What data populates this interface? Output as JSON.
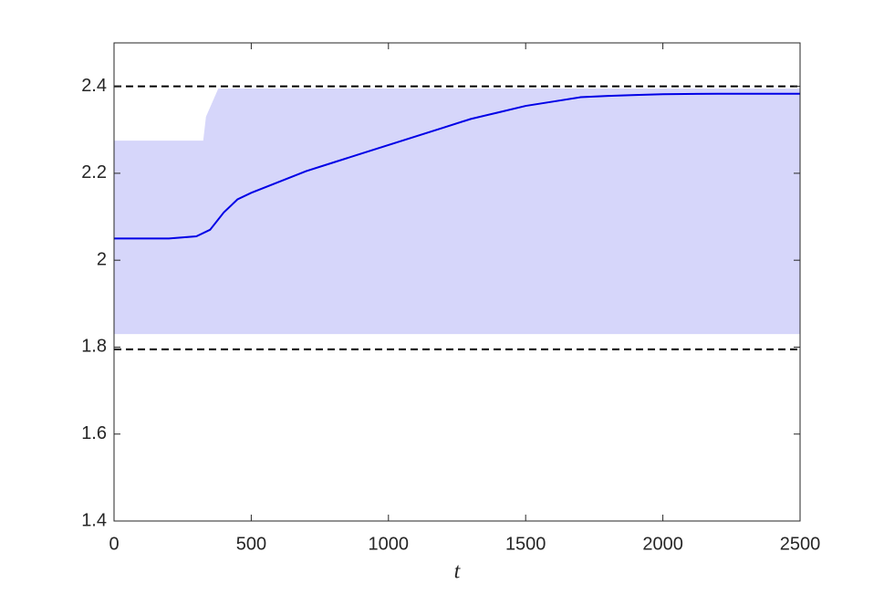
{
  "chart_data": {
    "type": "line",
    "xlabel": "t",
    "xlim": [
      0,
      2500
    ],
    "ylim": [
      1.4,
      2.5
    ],
    "xticks": [
      0,
      500,
      1000,
      1500,
      2000,
      2500
    ],
    "yticks": [
      1.4,
      1.6,
      1.8,
      2,
      2.2,
      2.4
    ],
    "hlines": [
      2.4,
      1.795
    ],
    "band": {
      "color": "#d6d6fa",
      "x": [
        0,
        325,
        335,
        380,
        2500
      ],
      "upper": [
        2.275,
        2.275,
        2.33,
        2.395,
        2.395
      ],
      "lower": [
        1.83,
        1.83,
        1.83,
        1.83,
        1.83
      ]
    },
    "x": [
      0,
      100,
      200,
      300,
      350,
      400,
      450,
      500,
      600,
      700,
      800,
      900,
      1000,
      1100,
      1200,
      1300,
      1400,
      1500,
      1600,
      1700,
      1800,
      1900,
      2000,
      2200,
      2500
    ],
    "series": [
      {
        "color": "#0000e6",
        "values": [
          2.05,
          2.05,
          2.05,
          2.055,
          2.07,
          2.11,
          2.14,
          2.155,
          2.18,
          2.205,
          2.225,
          2.245,
          2.265,
          2.285,
          2.305,
          2.325,
          2.34,
          2.355,
          2.365,
          2.375,
          2.378,
          2.38,
          2.382,
          2.383,
          2.383
        ]
      }
    ]
  }
}
